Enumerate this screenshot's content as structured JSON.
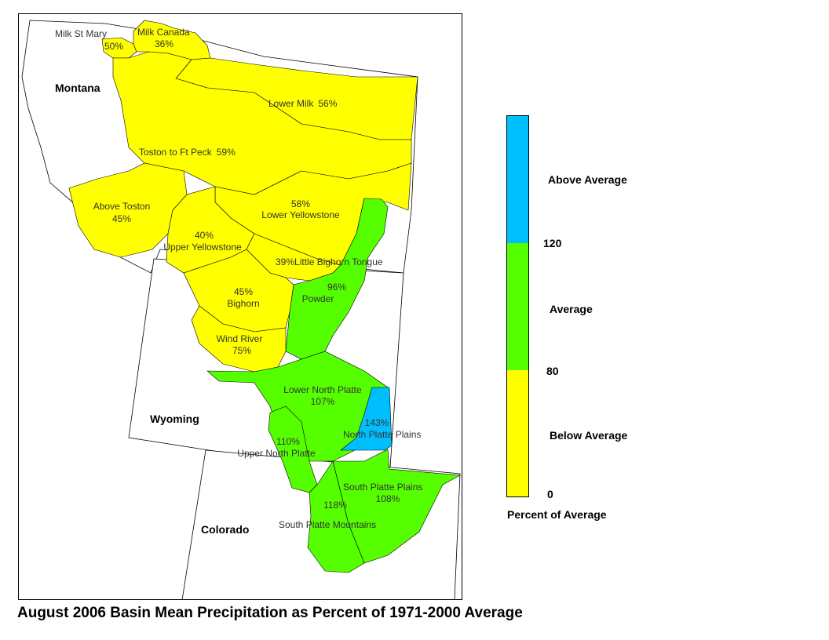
{
  "title": "August 2006 Basin Mean Precipitation as Percent of 1971-2000 Average",
  "colors": {
    "below": "#ffff00",
    "average": "#55ff00",
    "above": "#00bfff",
    "outline": "#000000",
    "state_fill": "#ffffff"
  },
  "states": [
    {
      "id": "montana",
      "label": "Montana"
    },
    {
      "id": "wyoming",
      "label": "Wyoming"
    },
    {
      "id": "colorado",
      "label": "Colorado"
    }
  ],
  "basins": [
    {
      "id": "milk-st-mary",
      "name": "Milk St Mary",
      "percent": "50%",
      "category": "below"
    },
    {
      "id": "milk-canada",
      "name": "Milk Canada",
      "percent": "36%",
      "category": "below"
    },
    {
      "id": "lower-milk",
      "name": "Lower Milk",
      "percent": "56%",
      "category": "below"
    },
    {
      "id": "toston-to-ft-peck",
      "name": "Toston to Ft Peck",
      "percent": "59%",
      "category": "below"
    },
    {
      "id": "above-toston",
      "name": "Above Toston",
      "percent": "45%",
      "category": "below"
    },
    {
      "id": "lower-yellowstone",
      "name": "Lower Yellowstone",
      "percent": "58%",
      "category": "below"
    },
    {
      "id": "upper-yellowstone",
      "name": "Upper Yellowstone",
      "percent": "40%",
      "category": "below"
    },
    {
      "id": "little-bighorn-tongue",
      "name": "Little Bighorn Tongue",
      "percent": "39%",
      "category": "below"
    },
    {
      "id": "powder",
      "name": "Powder",
      "percent": "96%",
      "category": "average"
    },
    {
      "id": "bighorn",
      "name": "Bighorn",
      "percent": "45%",
      "category": "below"
    },
    {
      "id": "wind-river",
      "name": "Wind River",
      "percent": "75%",
      "category": "below"
    },
    {
      "id": "lower-north-platte",
      "name": "Lower North Platte",
      "percent": "107%",
      "category": "average"
    },
    {
      "id": "north-platte-plains",
      "name": "North Platte Plains",
      "percent": "143%",
      "category": "above"
    },
    {
      "id": "upper-north-platte",
      "name": "Upper North Platte",
      "percent": "110%",
      "category": "average"
    },
    {
      "id": "south-platte-plains",
      "name": "South Platte Plains",
      "percent": "108%",
      "category": "average"
    },
    {
      "id": "south-platte-mountains",
      "name": "South Platte Mountains",
      "percent": "118%",
      "category": "average"
    }
  ],
  "legend": {
    "caption": "Percent of Average",
    "classes": [
      {
        "id": "above",
        "label": "Above Average",
        "min": 120,
        "max": null
      },
      {
        "id": "average",
        "label": "Average",
        "min": 80,
        "max": 120
      },
      {
        "id": "below",
        "label": "Below Average",
        "min": 0,
        "max": 80
      }
    ],
    "ticks": [
      "120",
      "80",
      "0"
    ]
  }
}
